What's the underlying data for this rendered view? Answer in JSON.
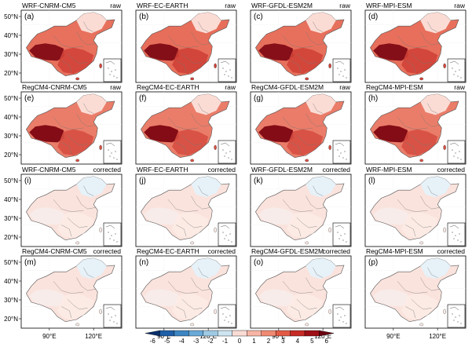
{
  "chart_data": {
    "type": "map_grid",
    "rows": [
      {
        "status": "raw",
        "panels": [
          {
            "label": "(a)",
            "model": "WRF-CNRM-CM5",
            "intensity": 0.75,
            "bias_category": "warm-large"
          },
          {
            "label": "(b)",
            "model": "WRF-EC-EARTH",
            "intensity": 0.78,
            "bias_category": "warm-large"
          },
          {
            "label": "(c)",
            "model": "WRF-GFDL-ESM2M",
            "intensity": 0.76,
            "bias_category": "warm-large"
          },
          {
            "label": "(d)",
            "model": "WRF-MPI-ESM",
            "intensity": 0.77,
            "bias_category": "warm-large"
          }
        ]
      },
      {
        "status": "raw",
        "panels": [
          {
            "label": "(e)",
            "model": "RegCM4-CNRM-CM5",
            "intensity": 0.62,
            "bias_category": "warm-west"
          },
          {
            "label": "(f)",
            "model": "RegCM4-EC-EARTH",
            "intensity": 0.62,
            "bias_category": "warm-west"
          },
          {
            "label": "(g)",
            "model": "RegCM4-GFDL-ESM2M",
            "intensity": 0.63,
            "bias_category": "warm-west"
          },
          {
            "label": "(h)",
            "model": "RegCM4-MPI-ESM",
            "intensity": 0.62,
            "bias_category": "warm-west"
          }
        ]
      },
      {
        "status": "corrected",
        "panels": [
          {
            "label": "(i)",
            "model": "WRF-CNRM-CM5",
            "intensity": 0.08,
            "bias_category": "near-zero"
          },
          {
            "label": "(j)",
            "model": "WRF-EC-EARTH",
            "intensity": 0.08,
            "bias_category": "near-zero"
          },
          {
            "label": "(k)",
            "model": "WRF-GFDL-ESM2M",
            "intensity": 0.08,
            "bias_category": "near-zero"
          },
          {
            "label": "(l)",
            "model": "WRF-MPI-ESM",
            "intensity": 0.08,
            "bias_category": "near-zero"
          }
        ]
      },
      {
        "status": "corrected",
        "panels": [
          {
            "label": "(m)",
            "model": "RegCM4-CNRM-CM5",
            "intensity": 0.08,
            "bias_category": "near-zero"
          },
          {
            "label": "(n)",
            "model": "RegCM4-EC-EARTH",
            "intensity": 0.08,
            "bias_category": "near-zero"
          },
          {
            "label": "(o)",
            "model": "RegCM4-GFDL-ESM2M",
            "intensity": 0.08,
            "bias_category": "near-zero"
          },
          {
            "label": "(p)",
            "model": "RegCM4-MPI-ESM",
            "intensity": 0.08,
            "bias_category": "near-zero"
          }
        ]
      }
    ],
    "lat_ticks": [
      "50°N",
      "40°N",
      "30°N",
      "20°N"
    ],
    "lon_ticks": [
      "90°E",
      "120°E"
    ],
    "colorbar": {
      "ticks": [
        "-6",
        "-5",
        "-4",
        "-3",
        "-2",
        "-1",
        "0",
        "1",
        "2",
        "3",
        "4",
        "5",
        "6"
      ],
      "colors": [
        "#08306b",
        "#1f5fa8",
        "#3c86c2",
        "#6aaad8",
        "#9fcae4",
        "#cde4f1",
        "#fbdcd5",
        "#f7b5a5",
        "#f08a72",
        "#e25a45",
        "#c62b25",
        "#9e1016",
        "#6b0010"
      ],
      "range": [
        -6,
        6
      ]
    }
  }
}
